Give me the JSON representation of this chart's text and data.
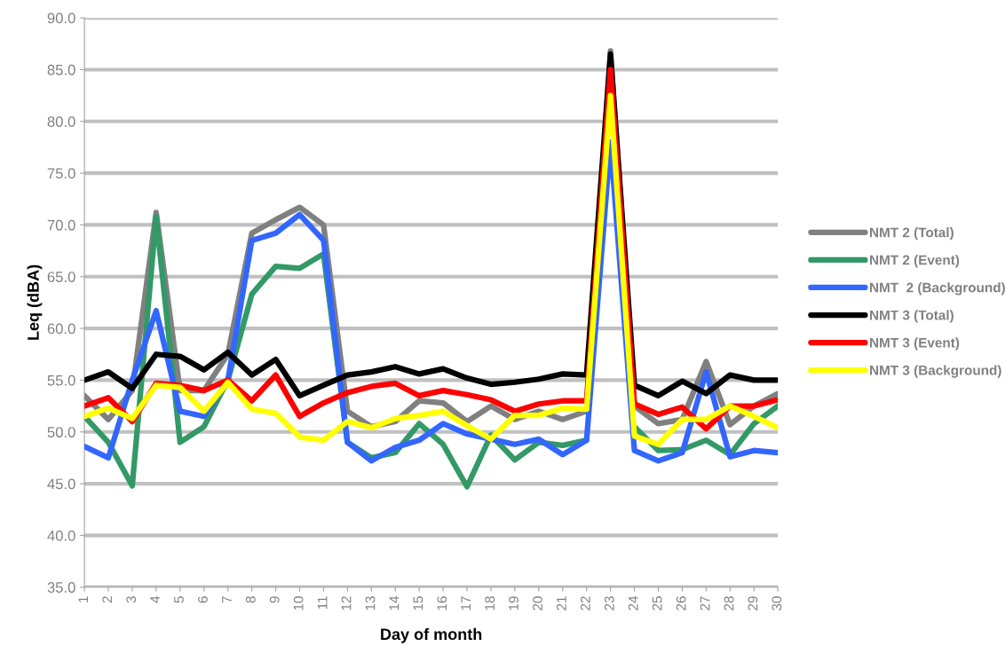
{
  "chart_data": {
    "type": "line",
    "xlabel": "Day of month",
    "ylabel": "Leq (dBA)",
    "categories": [
      "1",
      "2",
      "3",
      "4",
      "5",
      "6",
      "7",
      "8",
      "9",
      "10",
      "11",
      "12",
      "13",
      "14",
      "15",
      "16",
      "17",
      "18",
      "19",
      "20",
      "21",
      "22",
      "23",
      "24",
      "25",
      "26",
      "27",
      "28",
      "29",
      "30"
    ],
    "ylim": [
      35,
      90
    ],
    "yticks": [
      {
        "value": 35,
        "label": "35.0"
      },
      {
        "value": 40,
        "label": "40.0"
      },
      {
        "value": 45,
        "label": "45.0"
      },
      {
        "value": 50,
        "label": "50.0"
      },
      {
        "value": 55,
        "label": "55.0"
      },
      {
        "value": 60,
        "label": "60.0"
      },
      {
        "value": 65,
        "label": "65.0"
      },
      {
        "value": 70,
        "label": "70.0"
      },
      {
        "value": 75,
        "label": "75.0"
      },
      {
        "value": 80,
        "label": "80.0"
      },
      {
        "value": 85,
        "label": "85.0"
      },
      {
        "value": 90,
        "label": "90.0"
      }
    ],
    "grid": "y",
    "legend": "right",
    "marker": "none",
    "line_style": "solid",
    "series": [
      {
        "name": "NMT 2 (Total)",
        "color": "#808080",
        "values": [
          53.5,
          51.2,
          54,
          71.2,
          54,
          54,
          57.5,
          69.2,
          70.5,
          71.7,
          70,
          52,
          50.5,
          51,
          53,
          52.8,
          51,
          52.5,
          51.2,
          52,
          51.2,
          52,
          86.8,
          52.5,
          50.8,
          51.2,
          56.8,
          50.7,
          52.5,
          53.7
        ]
      },
      {
        "name": "NMT 2 (Event)",
        "color": "#339966",
        "values": [
          51.5,
          49,
          44.8,
          70.8,
          49,
          50.5,
          55,
          63.3,
          66,
          65.8,
          67.2,
          49,
          47.5,
          48,
          50.8,
          48.8,
          44.7,
          49.7,
          47.3,
          49,
          48.7,
          49.2,
          null,
          50.5,
          48.2,
          48.3,
          49.2,
          47.8,
          50.8,
          52.5
        ]
      },
      {
        "name": "NMT  2 (Background)",
        "color": "#3366ff",
        "values": [
          48.6,
          47.5,
          55,
          61.7,
          52,
          51.5,
          55,
          68.5,
          69.2,
          71,
          68.5,
          49,
          47.2,
          48.5,
          49.2,
          50.8,
          49.8,
          49.3,
          48.8,
          49.3,
          47.8,
          49.2,
          78,
          48.2,
          47.2,
          48,
          55.8,
          47.6,
          48.2,
          48
        ]
      },
      {
        "name": "NMT 3 (Total)",
        "color": "#000000",
        "values": [
          55,
          55.8,
          54.2,
          57.5,
          57.3,
          56,
          57.7,
          55.5,
          57,
          53.5,
          54.5,
          55.5,
          55.8,
          56.3,
          55.6,
          56.1,
          55.2,
          54.6,
          54.8,
          55.1,
          55.6,
          55.5,
          86.5,
          54.5,
          53.5,
          54.9,
          53.7,
          55.5,
          55,
          55
        ]
      },
      {
        "name": "NMT 3 (Event)",
        "color": "#ff0000",
        "values": [
          52.5,
          53.3,
          51,
          54.7,
          54.5,
          54,
          55,
          53,
          55.5,
          51.5,
          52.8,
          53.8,
          54.4,
          54.7,
          53.5,
          54,
          53.6,
          53.1,
          52,
          52.7,
          53,
          53,
          85,
          52.7,
          51.7,
          52.4,
          50.3,
          52.5,
          52.5,
          53.1
        ]
      },
      {
        "name": "NMT 3 (Background)",
        "color": "#ffff00",
        "values": [
          51.5,
          52.3,
          51.3,
          54.5,
          54.3,
          52,
          54.8,
          52.2,
          51.8,
          49.5,
          49.2,
          51,
          50.4,
          51.3,
          51.6,
          52,
          50.6,
          49.3,
          51.6,
          51.6,
          52.3,
          52.2,
          82.5,
          49.6,
          48.8,
          51.2,
          51.2,
          52.5,
          51.5,
          50.4
        ]
      }
    ]
  }
}
